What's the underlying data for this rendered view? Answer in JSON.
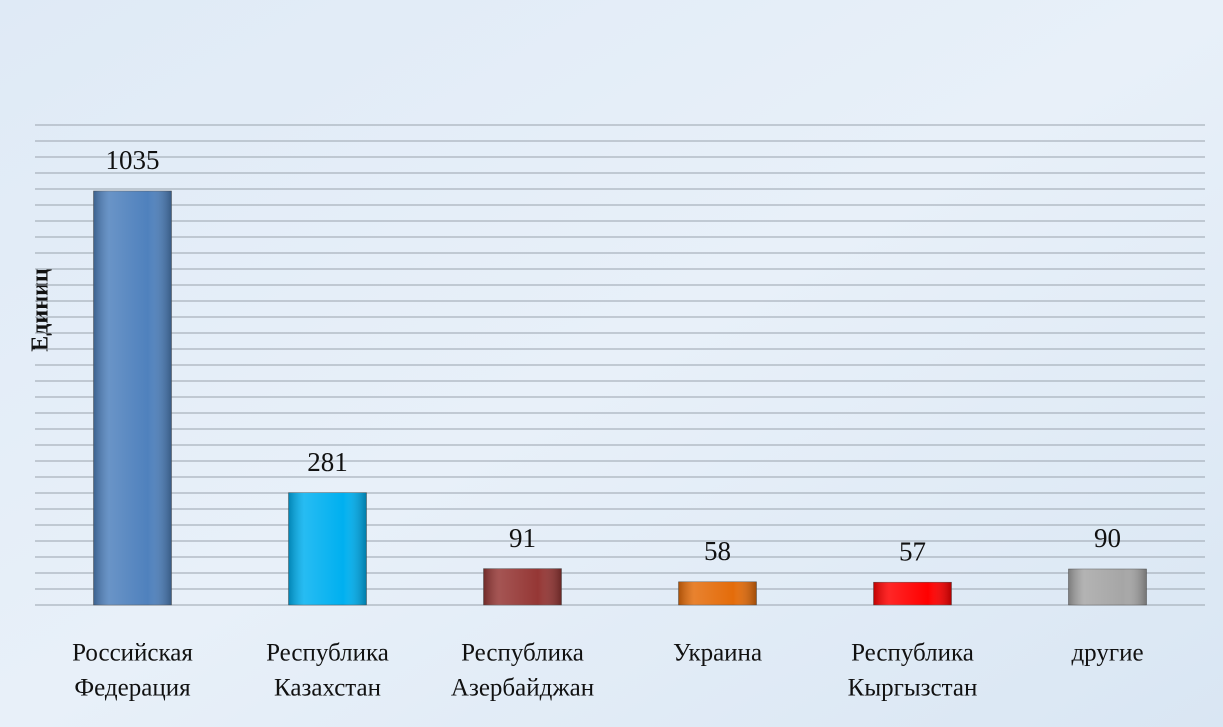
{
  "chart_data": {
    "type": "bar",
    "y_axis_label": "Единиц",
    "categories": [
      [
        "Российская",
        "Федерация"
      ],
      [
        "Республика",
        "Казахстан"
      ],
      [
        "Республика",
        "Азербайджан"
      ],
      [
        "Украина"
      ],
      [
        "Республика",
        "Кыргызстан"
      ],
      [
        "другие"
      ]
    ],
    "values": [
      1035,
      281,
      91,
      58,
      57,
      90
    ],
    "colors": [
      "#4f81bd",
      "#00b0f0",
      "#953735",
      "#e46c0a",
      "#ff0000",
      "#a6a6a6"
    ],
    "ylim": [
      0,
      1200
    ],
    "yticks": [
      0,
      40,
      80,
      120,
      160,
      200,
      240,
      280,
      320,
      360,
      400,
      440,
      480,
      520,
      560,
      600,
      640,
      680,
      720,
      760,
      800,
      840,
      880,
      920,
      960,
      1000,
      1040,
      1080,
      1120,
      1160,
      1200
    ],
    "grid": true
  }
}
